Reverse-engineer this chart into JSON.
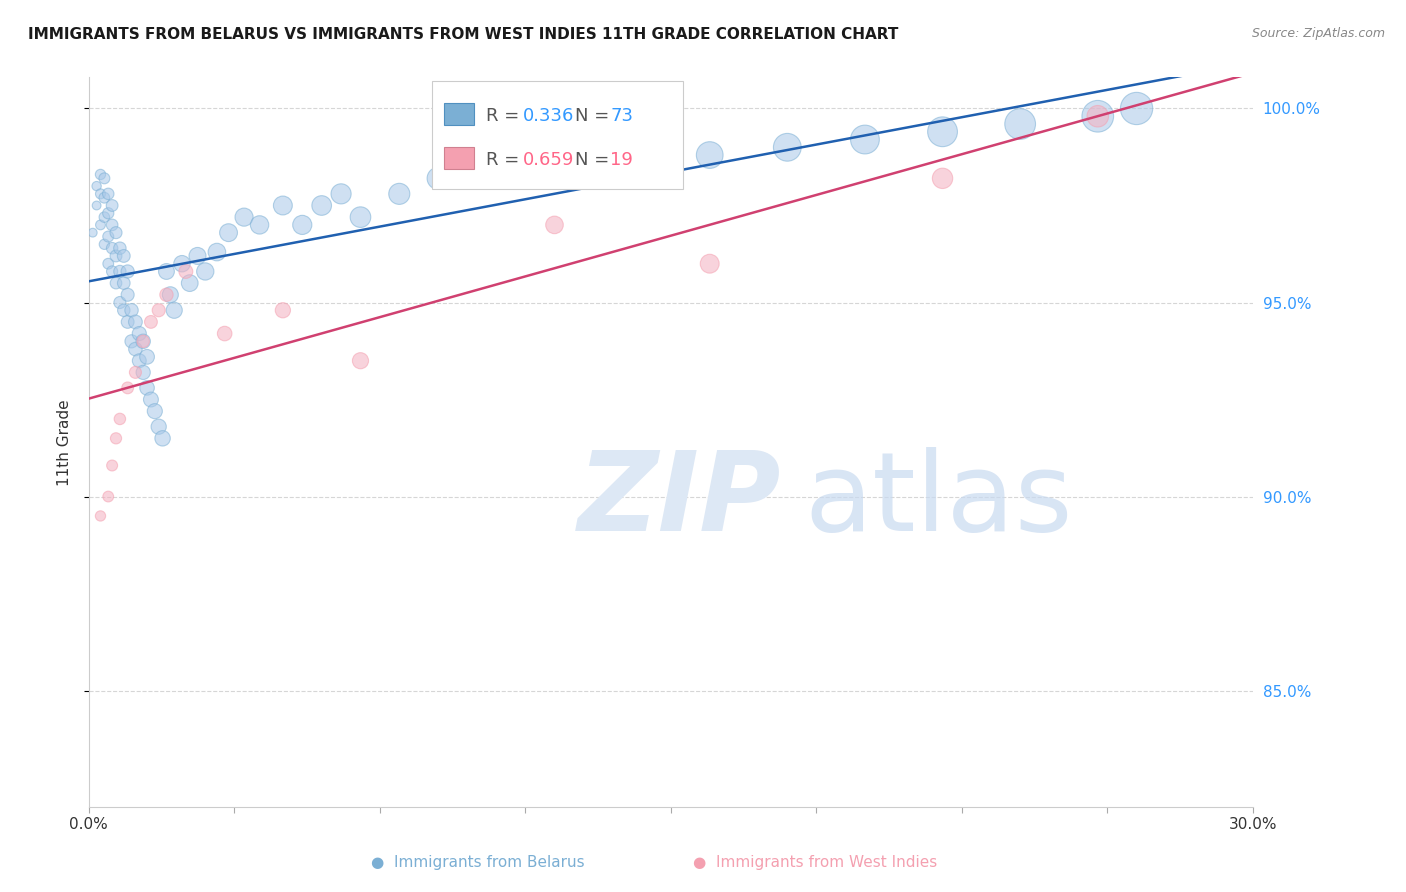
{
  "title": "IMMIGRANTS FROM BELARUS VS IMMIGRANTS FROM WEST INDIES 11TH GRADE CORRELATION CHART",
  "source": "Source: ZipAtlas.com",
  "ylabel": "11th Grade",
  "ylabel_right_ticks": [
    "100.0%",
    "95.0%",
    "90.0%",
    "85.0%"
  ],
  "ylabel_right_vals": [
    1.0,
    0.95,
    0.9,
    0.85
  ],
  "xlim": [
    0.0,
    0.3
  ],
  "ylim": [
    0.82,
    1.008
  ],
  "legend_blue_color": "#7bafd4",
  "legend_pink_color": "#f4a0b0",
  "scatter_blue_color": "#a8c8e8",
  "scatter_pink_color": "#f4b0c0",
  "trendline_blue_color": "#2060b0",
  "trendline_pink_color": "#d04070",
  "blue_R": 0.336,
  "blue_N": 73,
  "pink_R": 0.659,
  "pink_N": 19,
  "blue_x": [
    0.001,
    0.002,
    0.002,
    0.003,
    0.003,
    0.003,
    0.004,
    0.004,
    0.004,
    0.004,
    0.005,
    0.005,
    0.005,
    0.005,
    0.006,
    0.006,
    0.006,
    0.006,
    0.007,
    0.007,
    0.007,
    0.008,
    0.008,
    0.008,
    0.009,
    0.009,
    0.009,
    0.01,
    0.01,
    0.01,
    0.011,
    0.011,
    0.012,
    0.012,
    0.013,
    0.013,
    0.014,
    0.014,
    0.015,
    0.015,
    0.016,
    0.017,
    0.018,
    0.019,
    0.02,
    0.021,
    0.022,
    0.024,
    0.026,
    0.028,
    0.03,
    0.033,
    0.036,
    0.04,
    0.044,
    0.05,
    0.055,
    0.06,
    0.065,
    0.07,
    0.08,
    0.09,
    0.1,
    0.11,
    0.12,
    0.14,
    0.16,
    0.18,
    0.2,
    0.22,
    0.24,
    0.26,
    0.27
  ],
  "blue_y": [
    0.968,
    0.975,
    0.98,
    0.97,
    0.978,
    0.983,
    0.965,
    0.972,
    0.977,
    0.982,
    0.96,
    0.967,
    0.973,
    0.978,
    0.958,
    0.964,
    0.97,
    0.975,
    0.955,
    0.962,
    0.968,
    0.95,
    0.958,
    0.964,
    0.948,
    0.955,
    0.962,
    0.945,
    0.952,
    0.958,
    0.94,
    0.948,
    0.938,
    0.945,
    0.935,
    0.942,
    0.932,
    0.94,
    0.928,
    0.936,
    0.925,
    0.922,
    0.918,
    0.915,
    0.958,
    0.952,
    0.948,
    0.96,
    0.955,
    0.962,
    0.958,
    0.963,
    0.968,
    0.972,
    0.97,
    0.975,
    0.97,
    0.975,
    0.978,
    0.972,
    0.978,
    0.982,
    0.985,
    0.988,
    0.99,
    0.992,
    0.988,
    0.99,
    0.992,
    0.994,
    0.996,
    0.998,
    1.0
  ],
  "blue_sizes": [
    40,
    40,
    45,
    50,
    52,
    55,
    55,
    58,
    60,
    62,
    60,
    62,
    65,
    68,
    65,
    68,
    70,
    72,
    70,
    73,
    75,
    75,
    78,
    80,
    80,
    83,
    85,
    85,
    88,
    90,
    90,
    93,
    95,
    98,
    100,
    103,
    105,
    108,
    110,
    113,
    115,
    118,
    120,
    123,
    130,
    133,
    135,
    140,
    145,
    150,
    155,
    160,
    165,
    170,
    175,
    185,
    190,
    200,
    210,
    220,
    230,
    250,
    270,
    290,
    310,
    340,
    370,
    400,
    430,
    460,
    490,
    520,
    540
  ],
  "pink_x": [
    0.003,
    0.005,
    0.006,
    0.007,
    0.008,
    0.01,
    0.012,
    0.014,
    0.016,
    0.018,
    0.02,
    0.025,
    0.035,
    0.05,
    0.07,
    0.12,
    0.16,
    0.22,
    0.26
  ],
  "pink_y": [
    0.895,
    0.9,
    0.908,
    0.915,
    0.92,
    0.928,
    0.932,
    0.94,
    0.945,
    0.948,
    0.952,
    0.958,
    0.942,
    0.948,
    0.935,
    0.97,
    0.96,
    0.982,
    0.998
  ],
  "pink_sizes": [
    55,
    60,
    62,
    65,
    68,
    72,
    75,
    80,
    85,
    88,
    92,
    100,
    110,
    120,
    135,
    160,
    185,
    215,
    240
  ]
}
